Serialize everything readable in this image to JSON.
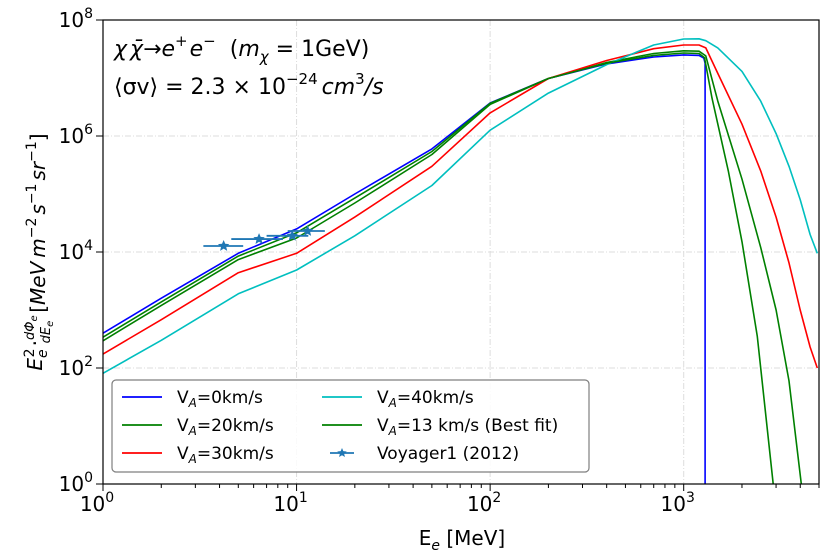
{
  "chart_data": {
    "type": "line",
    "title": "",
    "xlabel": "E_e [MeV]",
    "xlabel_parts": {
      "main": "E",
      "sub": "e",
      "unit": " [MeV]"
    },
    "ylabel": "E_e^2 · dΦ_e/dE_e [MeV m^-2 s^-1 sr^-1]",
    "ylabel_parts": {
      "main": "E",
      "sub": "e",
      "sup": "2",
      "dot": "·",
      "frac_num": "dΦ",
      "frac_num_sub": "e",
      "frac_den": "dE",
      "frac_den_sub": "e",
      "unit_open": "[",
      "unit_1": "MeV",
      "unit_2": "m",
      "unit_2_sup": "−2",
      "unit_3": "s",
      "unit_3_sup": "−1",
      "unit_4": "sr",
      "unit_4_sup": "−1",
      "unit_close": "]"
    },
    "xscale": "log",
    "yscale": "log",
    "xlim": [
      1,
      5000
    ],
    "ylim": [
      1,
      100000000
    ],
    "grid": true,
    "x_ticks": [
      {
        "value": 1,
        "base": "10",
        "exp": "0"
      },
      {
        "value": 10,
        "base": "10",
        "exp": "1"
      },
      {
        "value": 100,
        "base": "10",
        "exp": "2"
      },
      {
        "value": 1000,
        "base": "10",
        "exp": "3"
      }
    ],
    "y_ticks": [
      {
        "value": 1,
        "base": "10",
        "exp": "0"
      },
      {
        "value": 100,
        "base": "10",
        "exp": "2"
      },
      {
        "value": 10000,
        "base": "10",
        "exp": "4"
      },
      {
        "value": 1000000,
        "base": "10",
        "exp": "6"
      },
      {
        "value": 100000000,
        "base": "10",
        "exp": "8"
      }
    ],
    "annotations": [
      {
        "text": "χχ̄→e⁺e⁻  (m_χ = 1GeV)",
        "line1_parts": {
          "a": "χ",
          "b": "χ̄",
          "arrow": "→",
          "e1": "e",
          "e1_sup": "+",
          "e2": "e",
          "e2_sup": "−",
          "paren_open": "(",
          "m": "m",
          "m_sub": "χ",
          "eq": " = 1GeV",
          "paren_close": ")"
        }
      },
      {
        "text": "⟨σv⟩ = 2.3 × 10^−24 cm³/s",
        "line2_parts": {
          "lhs": "⟨σv⟩ = 2.3 × 10",
          "exp": "−24",
          "unit": "cm",
          "unit_sup": "3",
          "unit_tail": "/s"
        }
      }
    ],
    "legend_position": "lower-left",
    "series": [
      {
        "name": "V_A=0km/s",
        "label_main": "V",
        "label_sub": "A",
        "label_tail": "=0km/s",
        "color": "#0000ff",
        "x": [
          1,
          2,
          5,
          10,
          20,
          50,
          100,
          200,
          400,
          700,
          1000,
          1200,
          1270,
          1290,
          1290
        ],
        "y": [
          398,
          1600,
          9500,
          25000,
          100000,
          600000,
          3700000,
          9800000,
          17500000,
          23000000,
          25000000,
          24500000,
          22000000,
          18000000,
          1
        ]
      },
      {
        "name": "V_A=20km/s",
        "label_main": "V",
        "label_sub": "A",
        "label_tail": "=20km/s",
        "color": "#008000",
        "x": [
          1,
          2,
          5,
          10,
          20,
          50,
          100,
          200,
          400,
          700,
          1000,
          1200,
          1300,
          1500,
          2000,
          2500,
          3000,
          3500,
          4050
        ],
        "y": [
          295,
          1200,
          7400,
          17400,
          70000,
          480000,
          3500000,
          9800000,
          18500000,
          26500000,
          29500000,
          29000000,
          24000000,
          4000000,
          180000,
          12000,
          1000,
          60,
          1
        ]
      },
      {
        "name": "V_A=30km/s",
        "label_main": "V",
        "label_sub": "A",
        "label_tail": "=30km/s",
        "color": "#ff0000",
        "x": [
          1,
          2,
          5,
          10,
          20,
          50,
          100,
          200,
          400,
          700,
          1000,
          1200,
          1300,
          1500,
          2000,
          2500,
          3000,
          3500,
          4000,
          4500,
          4900
        ],
        "y": [
          174,
          680,
          4400,
          9500,
          40000,
          300000,
          2500000,
          9800000,
          20000000,
          32000000,
          37000000,
          37000000,
          33000000,
          12000000,
          1600000,
          250000,
          40000,
          6500,
          1000,
          230,
          100
        ]
      },
      {
        "name": "V_A=40km/s",
        "label_main": "V",
        "label_sub": "A",
        "label_tail": "=40km/s",
        "color": "#00bfbf",
        "x": [
          1,
          2,
          5,
          10,
          20,
          50,
          100,
          200,
          400,
          700,
          1000,
          1200,
          1300,
          1500,
          2000,
          2500,
          3000,
          3500,
          4000,
          4500,
          4900
        ],
        "y": [
          81,
          300,
          1900,
          4900,
          19000,
          140000,
          1260000,
          5500000,
          17000000,
          37000000,
          47000000,
          47500000,
          44000000,
          33000000,
          13000000,
          4000000,
          1100000,
          300000,
          80000,
          20000,
          9500
        ]
      },
      {
        "name": "V_A=13 km/s (Best fit)",
        "label_main": "V",
        "label_sub": "A",
        "label_tail": "=13 km/s (Best fit)",
        "color": "#008000",
        "x": [
          1,
          2,
          5,
          10,
          20,
          50,
          100,
          200,
          400,
          700,
          1000,
          1200,
          1280,
          1400,
          1700,
          2000,
          2400,
          2900
        ],
        "y": [
          339,
          1380,
          8500,
          21400,
          85000,
          540000,
          3650000,
          9800000,
          18000000,
          24500000,
          27000000,
          26500000,
          22500000,
          4500000,
          250000,
          15000,
          350,
          1
        ]
      }
    ],
    "errorbar_series": {
      "name": "Voyager1 (2012)",
      "color": "#1f77b4",
      "marker": "star",
      "points": [
        {
          "x": 4.2,
          "y": 12700,
          "xlo": 3.3,
          "xhi": 5.3
        },
        {
          "x": 6.4,
          "y": 16700,
          "xlo": 4.6,
          "xhi": 8.5
        },
        {
          "x": 9.5,
          "y": 19000,
          "xlo": 7.0,
          "xhi": 11.5
        },
        {
          "x": 11.4,
          "y": 23000,
          "xlo": 9.0,
          "xhi": 14.0
        }
      ]
    },
    "legend": [
      {
        "series": 0,
        "label_main": "V",
        "label_sub": "A",
        "label_tail": "=0km/s",
        "color": "#0000ff",
        "kind": "line"
      },
      {
        "series": 1,
        "label_main": "V",
        "label_sub": "A",
        "label_tail": "=20km/s",
        "color": "#008000",
        "kind": "line"
      },
      {
        "series": 2,
        "label_main": "V",
        "label_sub": "A",
        "label_tail": "=30km/s",
        "color": "#ff0000",
        "kind": "line"
      },
      {
        "series": 3,
        "label_main": "V",
        "label_sub": "A",
        "label_tail": "=40km/s",
        "color": "#00bfbf",
        "kind": "line"
      },
      {
        "series": 4,
        "label_main": "V",
        "label_sub": "A",
        "label_tail": "=13 km/s (Best fit)",
        "color": "#008000",
        "kind": "line"
      },
      {
        "series": "voyager",
        "label_main": "Voyager1 (2012)",
        "label_sub": "",
        "label_tail": "",
        "color": "#1f77b4",
        "kind": "errorbar"
      }
    ]
  }
}
